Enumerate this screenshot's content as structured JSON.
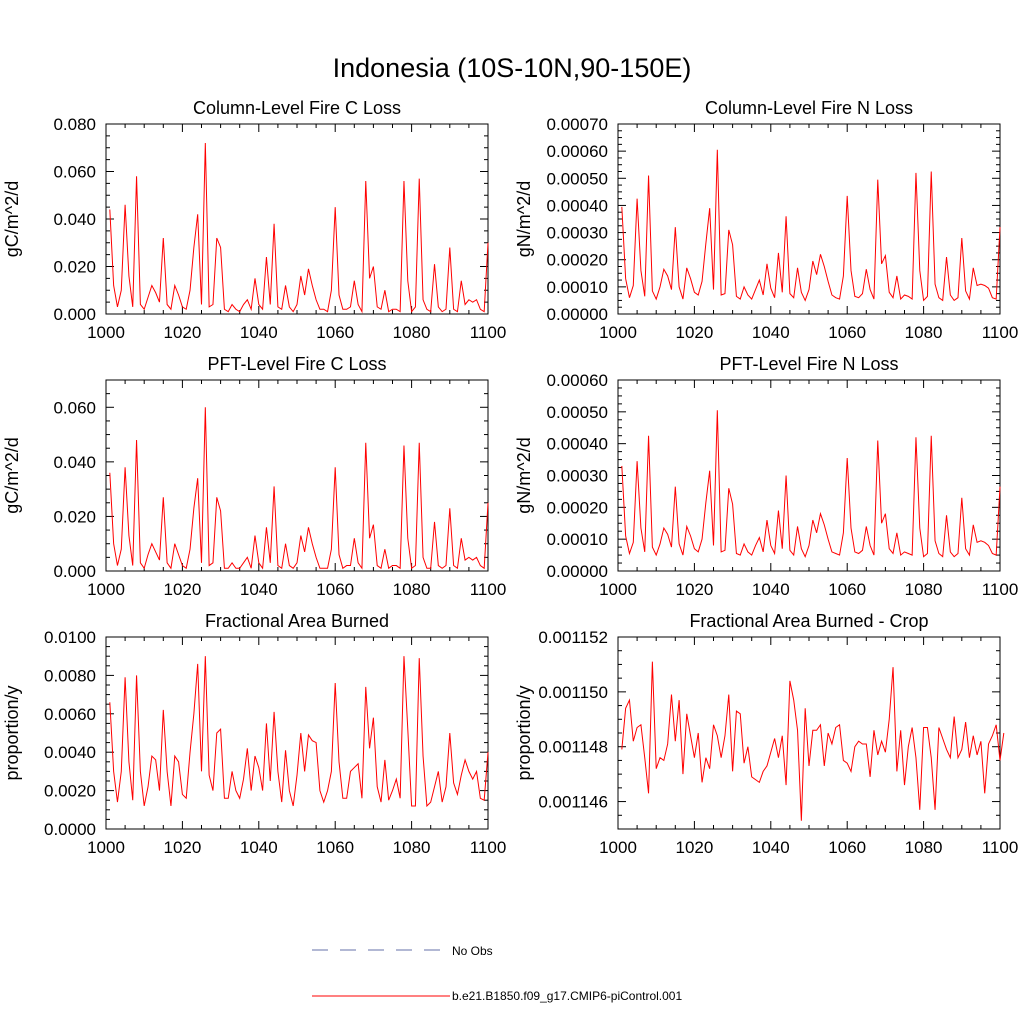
{
  "figure_title": "Indonesia (10S-10N,90-150E)",
  "colors": {
    "series": "#ff0000",
    "obs": "#6670aa",
    "axis": "#000000"
  },
  "legend": {
    "entries": [
      {
        "label": "No Obs",
        "style": "dashed",
        "color": "#6670aa"
      },
      {
        "label": "b.e21.B1850.f09_g17.CMIP6-piControl.001",
        "style": "solid",
        "color": "#ff0000"
      }
    ]
  },
  "chart_data": [
    {
      "type": "line",
      "title": "Column-Level Fire C Loss",
      "ylabel": "gC/m^2/d",
      "xlabel": "",
      "xlim": [
        1000,
        1100
      ],
      "ylim": [
        0,
        0.08
      ],
      "xticks": [
        "1000",
        "1020",
        "1040",
        "1060",
        "1080",
        "1100"
      ],
      "yticks": [
        "0.000",
        "0.020",
        "0.040",
        "0.060",
        "0.080"
      ],
      "ytick_values": [
        0,
        0.02,
        0.04,
        0.06,
        0.08
      ],
      "x_start": 1001,
      "series": [
        {
          "name": "b.e21.B1850.f09_g17.CMIP6-piControl.001",
          "values": [
            0.044,
            0.012,
            0.003,
            0.01,
            0.046,
            0.016,
            0.003,
            0.058,
            0.004,
            0.002,
            0.007,
            0.012,
            0.009,
            0.005,
            0.032,
            0.004,
            0.002,
            0.012,
            0.008,
            0.003,
            0.002,
            0.01,
            0.028,
            0.042,
            0.004,
            0.072,
            0.003,
            0.004,
            0.032,
            0.028,
            0.002,
            0.001,
            0.004,
            0.002,
            0.001,
            0.004,
            0.006,
            0.002,
            0.015,
            0.004,
            0.002,
            0.024,
            0.004,
            0.038,
            0.003,
            0.002,
            0.012,
            0.003,
            0.001,
            0.004,
            0.016,
            0.008,
            0.019,
            0.012,
            0.006,
            0.002,
            0.002,
            0.001,
            0.01,
            0.045,
            0.008,
            0.002,
            0.002,
            0.003,
            0.014,
            0.004,
            0.001,
            0.056,
            0.015,
            0.02,
            0.003,
            0.002,
            0.01,
            0.001,
            0.002,
            0.002,
            0.001,
            0.056,
            0.014,
            0.001,
            0.003,
            0.057,
            0.006,
            0.002,
            0.001,
            0.021,
            0.003,
            0.001,
            0.002,
            0.028,
            0.002,
            0.001,
            0.014,
            0.004,
            0.006,
            0.005,
            0.006,
            0.002,
            0.001,
            0.03
          ]
        }
      ]
    },
    {
      "type": "line",
      "title": "Column-Level Fire N Loss",
      "ylabel": "gN/m^2/d",
      "xlabel": "",
      "xlim": [
        1000,
        1100
      ],
      "ylim": [
        0,
        0.0007
      ],
      "xticks": [
        "1000",
        "1020",
        "1040",
        "1060",
        "1080",
        "1100"
      ],
      "yticks": [
        "0.00000",
        "0.00010",
        "0.00020",
        "0.00030",
        "0.00040",
        "0.00050",
        "0.00060",
        "0.00070"
      ],
      "ytick_values": [
        0,
        0.0001,
        0.0002,
        0.0003,
        0.0004,
        0.0005,
        0.0006,
        0.0007
      ],
      "x_start": 1001,
      "series": [
        {
          "name": "b.e21.B1850.f09_g17.CMIP6-piControl.001",
          "values": [
            0.000395,
            0.00013,
            6e-05,
            0.000105,
            0.000425,
            0.00016,
            6.5e-05,
            0.00051,
            8.5e-05,
            5.5e-05,
            0.0001,
            0.000165,
            0.00014,
            9e-05,
            0.00032,
            0.0001,
            5.5e-05,
            0.00017,
            0.00013,
            8e-05,
            7e-05,
            0.00012,
            0.00026,
            0.00039,
            9e-05,
            0.000605,
            7e-05,
            7.5e-05,
            0.00031,
            0.000255,
            6.5e-05,
            5.5e-05,
            0.0001,
            7e-05,
            5.5e-05,
            9e-05,
            0.000125,
            7e-05,
            0.000185,
            9.5e-05,
            6e-05,
            0.000225,
            8e-05,
            0.00036,
            7.5e-05,
            6e-05,
            0.00017,
            8e-05,
            5e-05,
            9e-05,
            0.000195,
            0.000145,
            0.00022,
            0.000175,
            0.00012,
            7e-05,
            6e-05,
            5.5e-05,
            0.00014,
            0.000435,
            0.00016,
            6.5e-05,
            6e-05,
            7.5e-05,
            0.000165,
            9e-05,
            5.5e-05,
            0.000495,
            0.000185,
            0.000215,
            8e-05,
            6e-05,
            0.00014,
            5.5e-05,
            7e-05,
            6.5e-05,
            5.5e-05,
            0.00052,
            0.00016,
            5e-05,
            6.5e-05,
            0.000525,
            0.00011,
            6e-05,
            5e-05,
            0.00021,
            7e-05,
            5e-05,
            6e-05,
            0.00028,
            8.5e-05,
            5.5e-05,
            0.00017,
            0.000105,
            0.00011,
            0.000105,
            9.5e-05,
            6e-05,
            5.5e-05,
            0.00032
          ]
        }
      ]
    },
    {
      "type": "line",
      "title": "PFT-Level Fire C Loss",
      "ylabel": "gC/m^2/d",
      "xlabel": "",
      "xlim": [
        1000,
        1100
      ],
      "ylim": [
        0,
        0.07
      ],
      "xticks": [
        "1000",
        "1020",
        "1040",
        "1060",
        "1080",
        "1100"
      ],
      "yticks": [
        "0.000",
        "0.020",
        "0.040",
        "0.060"
      ],
      "ytick_values": [
        0,
        0.02,
        0.04,
        0.06
      ],
      "x_start": 1001,
      "series": [
        {
          "name": "b.e21.B1850.f09_g17.CMIP6-piControl.001",
          "values": [
            0.036,
            0.01,
            0.002,
            0.008,
            0.038,
            0.013,
            0.002,
            0.048,
            0.003,
            0.001,
            0.006,
            0.01,
            0.007,
            0.004,
            0.027,
            0.003,
            0.001,
            0.01,
            0.006,
            0.002,
            0.001,
            0.008,
            0.023,
            0.034,
            0.003,
            0.06,
            0.002,
            0.003,
            0.027,
            0.022,
            0.001,
            0.001,
            0.003,
            0.001,
            0.001,
            0.003,
            0.005,
            0.001,
            0.013,
            0.003,
            0.001,
            0.016,
            0.003,
            0.031,
            0.002,
            0.001,
            0.01,
            0.002,
            0.001,
            0.003,
            0.013,
            0.007,
            0.016,
            0.01,
            0.005,
            0.001,
            0.001,
            0.001,
            0.008,
            0.038,
            0.006,
            0.001,
            0.002,
            0.002,
            0.012,
            0.003,
            0.001,
            0.047,
            0.012,
            0.017,
            0.002,
            0.001,
            0.008,
            0.001,
            0.002,
            0.002,
            0.001,
            0.046,
            0.012,
            0.001,
            0.002,
            0.047,
            0.005,
            0.001,
            0.001,
            0.018,
            0.002,
            0.001,
            0.002,
            0.023,
            0.002,
            0.001,
            0.012,
            0.004,
            0.005,
            0.004,
            0.005,
            0.002,
            0.001,
            0.025
          ]
        }
      ]
    },
    {
      "type": "line",
      "title": "PFT-Level Fire N Loss",
      "ylabel": "gN/m^2/d",
      "xlabel": "",
      "xlim": [
        1000,
        1100
      ],
      "ylim": [
        0,
        0.0006
      ],
      "xticks": [
        "1000",
        "1020",
        "1040",
        "1060",
        "1080",
        "1100"
      ],
      "yticks": [
        "0.00000",
        "0.00010",
        "0.00020",
        "0.00030",
        "0.00040",
        "0.00050",
        "0.00060"
      ],
      "ytick_values": [
        0,
        0.0001,
        0.0002,
        0.0003,
        0.0004,
        0.0005,
        0.0006
      ],
      "x_start": 1001,
      "series": [
        {
          "name": "b.e21.B1850.f09_g17.CMIP6-piControl.001",
          "values": [
            0.00033,
            0.00011,
            5.5e-05,
            9e-05,
            0.000345,
            0.000135,
            6e-05,
            0.000425,
            7.5e-05,
            5e-05,
            8.5e-05,
            0.000135,
            0.000115,
            7.5e-05,
            0.000265,
            8.5e-05,
            5e-05,
            0.00014,
            0.00011,
            7e-05,
            6e-05,
            0.0001,
            0.000215,
            0.000315,
            8e-05,
            0.000505,
            6e-05,
            6.5e-05,
            0.00026,
            0.00021,
            5.5e-05,
            5e-05,
            8.5e-05,
            6e-05,
            5e-05,
            8e-05,
            0.000105,
            6e-05,
            0.00016,
            8e-05,
            5.5e-05,
            0.00019,
            7e-05,
            0.0003,
            6.5e-05,
            5e-05,
            0.00014,
            7e-05,
            4.5e-05,
            8e-05,
            0.00016,
            0.00012,
            0.00018,
            0.000145,
            0.0001,
            6e-05,
            5.5e-05,
            5e-05,
            0.00012,
            0.000355,
            0.000135,
            6e-05,
            5.5e-05,
            6.5e-05,
            0.00014,
            8e-05,
            5e-05,
            0.00041,
            0.00015,
            0.00018,
            7e-05,
            5.5e-05,
            0.00012,
            5e-05,
            6e-05,
            5.5e-05,
            5e-05,
            0.00042,
            0.000135,
            4.5e-05,
            5.5e-05,
            0.000425,
            9.5e-05,
            5.5e-05,
            4.5e-05,
            0.000175,
            6e-05,
            4.5e-05,
            5.5e-05,
            0.00023,
            7e-05,
            5e-05,
            0.000145,
            9e-05,
            9.5e-05,
            9e-05,
            8e-05,
            5.5e-05,
            5e-05,
            0.000265
          ]
        }
      ]
    },
    {
      "type": "line",
      "title": "Fractional Area Burned",
      "ylabel": "proportion/y",
      "xlabel": "",
      "xlim": [
        1000,
        1100
      ],
      "ylim": [
        0,
        0.01
      ],
      "xticks": [
        "1000",
        "1020",
        "1040",
        "1060",
        "1080",
        "1100"
      ],
      "yticks": [
        "0.0000",
        "0.0020",
        "0.0040",
        "0.0060",
        "0.0080",
        "0.0100"
      ],
      "ytick_values": [
        0,
        0.002,
        0.004,
        0.006,
        0.008,
        0.01
      ],
      "x_start": 1001,
      "series": [
        {
          "name": "b.e21.B1850.f09_g17.CMIP6-piControl.001",
          "values": [
            0.0066,
            0.003,
            0.0014,
            0.003,
            0.0079,
            0.0035,
            0.0015,
            0.008,
            0.003,
            0.0012,
            0.0022,
            0.0038,
            0.0036,
            0.002,
            0.0062,
            0.003,
            0.0012,
            0.0038,
            0.0035,
            0.0018,
            0.0016,
            0.004,
            0.006,
            0.0086,
            0.003,
            0.009,
            0.0028,
            0.002,
            0.005,
            0.0052,
            0.0016,
            0.0016,
            0.003,
            0.002,
            0.0016,
            0.0026,
            0.0042,
            0.002,
            0.0038,
            0.0032,
            0.002,
            0.0055,
            0.0025,
            0.0061,
            0.003,
            0.0014,
            0.0041,
            0.002,
            0.0012,
            0.0028,
            0.005,
            0.003,
            0.0049,
            0.0046,
            0.0045,
            0.002,
            0.0014,
            0.002,
            0.003,
            0.0076,
            0.0035,
            0.0016,
            0.0016,
            0.003,
            0.0032,
            0.0034,
            0.0016,
            0.0074,
            0.0042,
            0.0058,
            0.0022,
            0.0014,
            0.0036,
            0.0015,
            0.002,
            0.0026,
            0.0016,
            0.009,
            0.0052,
            0.0012,
            0.0012,
            0.0089,
            0.0038,
            0.0012,
            0.0014,
            0.0022,
            0.003,
            0.0014,
            0.0022,
            0.005,
            0.0024,
            0.0018,
            0.0028,
            0.0036,
            0.003,
            0.0026,
            0.003,
            0.0016,
            0.0015,
            0.004
          ]
        }
      ]
    },
    {
      "type": "line",
      "title": "Fractional Area Burned - Crop",
      "ylabel": "proportion/y",
      "xlabel": "",
      "xlim": [
        1000,
        1100
      ],
      "ylim": [
        0.001145,
        0.001152
      ],
      "xticks": [
        "1000",
        "1020",
        "1040",
        "1060",
        "1080",
        "1100"
      ],
      "yticks": [
        "0.001146",
        "0.001148",
        "0.001150",
        "0.001152"
      ],
      "ytick_values": [
        0.001146,
        0.001148,
        0.00115,
        0.001152
      ],
      "x_start": 1001,
      "series": [
        {
          "name": "b.e21.B1850.f09_g17.CMIP6-piControl.001",
          "values": [
            0.0011479,
            0.0011494,
            0.0011497,
            0.0011482,
            0.0011487,
            0.0011488,
            0.0011476,
            0.0011463,
            0.0011511,
            0.0011472,
            0.0011476,
            0.0011475,
            0.0011481,
            0.0011499,
            0.0011482,
            0.0011497,
            0.001147,
            0.0011492,
            0.0011484,
            0.0011476,
            0.0011485,
            0.0011467,
            0.0011476,
            0.0011472,
            0.0011488,
            0.0011484,
            0.0011476,
            0.0011484,
            0.0011499,
            0.0011471,
            0.0011493,
            0.0011492,
            0.0011474,
            0.001148,
            0.0011469,
            0.0011468,
            0.0011467,
            0.0011471,
            0.0011473,
            0.0011478,
            0.0011483,
            0.0011476,
            0.0011484,
            0.0011466,
            0.0011504,
            0.0011497,
            0.0011486,
            0.0011453,
            0.0011494,
            0.0011473,
            0.0011486,
            0.0011486,
            0.0011488,
            0.0011473,
            0.0011485,
            0.0011481,
            0.0011487,
            0.0011488,
            0.0011475,
            0.0011474,
            0.0011471,
            0.001148,
            0.0011482,
            0.0011481,
            0.0011481,
            0.0011469,
            0.0011486,
            0.0011477,
            0.0011482,
            0.0011478,
            0.001149,
            0.0011509,
            0.0011471,
            0.0011486,
            0.0011466,
            0.001148,
            0.0011487,
            0.0011476,
            0.0011457,
            0.0011487,
            0.0011487,
            0.0011476,
            0.0011457,
            0.0011487,
            0.0011483,
            0.0011479,
            0.0011476,
            0.0011491,
            0.0011476,
            0.0011479,
            0.0011489,
            0.0011476,
            0.0011484,
            0.0011477,
            0.0011482,
            0.0011463,
            0.0011481,
            0.0011484,
            0.0011488,
            0.0011475,
            0.0011485
          ]
        }
      ]
    }
  ]
}
